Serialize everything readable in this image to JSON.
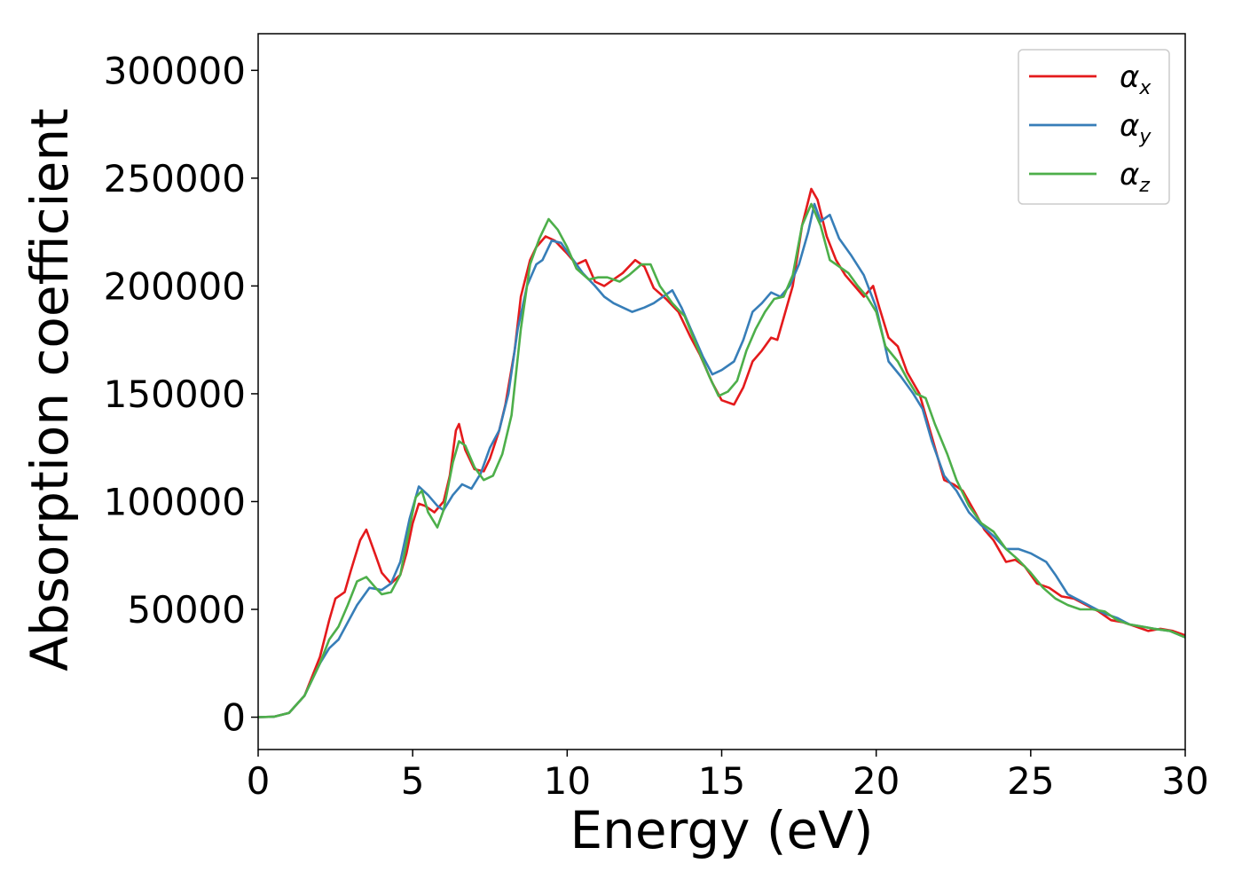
{
  "chart_data": {
    "type": "line",
    "xlabel": "Energy (eV)",
    "ylabel": "Absorption coefficient",
    "xlim": [
      0,
      30
    ],
    "ylim": [
      -15000,
      317000
    ],
    "x_ticks": [
      0,
      5,
      10,
      15,
      20,
      25,
      30
    ],
    "y_ticks": [
      0,
      50000,
      100000,
      150000,
      200000,
      250000,
      300000
    ],
    "x_tick_labels": [
      "0",
      "5",
      "10",
      "15",
      "20",
      "25",
      "30"
    ],
    "y_tick_labels": [
      "0",
      "50000",
      "100000",
      "150000",
      "200000",
      "250000",
      "300000"
    ],
    "grid": false,
    "legend_position": "top-right",
    "series": [
      {
        "name": "αx",
        "symbol": "α",
        "subscript": "x",
        "color": "#e41a1c",
        "points": [
          [
            0,
            0
          ],
          [
            0.5,
            200
          ],
          [
            1.0,
            2000
          ],
          [
            1.5,
            10000
          ],
          [
            2.0,
            28000
          ],
          [
            2.3,
            45000
          ],
          [
            2.5,
            55000
          ],
          [
            2.8,
            58000
          ],
          [
            3.0,
            68000
          ],
          [
            3.3,
            82000
          ],
          [
            3.5,
            87000
          ],
          [
            3.8,
            75000
          ],
          [
            4.0,
            67000
          ],
          [
            4.3,
            62000
          ],
          [
            4.6,
            66000
          ],
          [
            4.8,
            76000
          ],
          [
            5.0,
            90000
          ],
          [
            5.2,
            99000
          ],
          [
            5.4,
            98000
          ],
          [
            5.7,
            95000
          ],
          [
            6.0,
            100000
          ],
          [
            6.2,
            112000
          ],
          [
            6.4,
            133000
          ],
          [
            6.5,
            136000
          ],
          [
            6.7,
            124000
          ],
          [
            7.0,
            115000
          ],
          [
            7.3,
            114000
          ],
          [
            7.5,
            120000
          ],
          [
            7.8,
            133000
          ],
          [
            8.0,
            145000
          ],
          [
            8.3,
            170000
          ],
          [
            8.5,
            195000
          ],
          [
            8.8,
            212000
          ],
          [
            9.0,
            218000
          ],
          [
            9.3,
            223000
          ],
          [
            9.6,
            221000
          ],
          [
            10.0,
            215000
          ],
          [
            10.3,
            210000
          ],
          [
            10.6,
            212000
          ],
          [
            10.9,
            202000
          ],
          [
            11.2,
            200000
          ],
          [
            11.5,
            203000
          ],
          [
            11.8,
            206000
          ],
          [
            12.2,
            212000
          ],
          [
            12.5,
            209000
          ],
          [
            12.8,
            199000
          ],
          [
            13.2,
            194000
          ],
          [
            13.6,
            188000
          ],
          [
            14.0,
            176000
          ],
          [
            14.3,
            168000
          ],
          [
            14.7,
            155000
          ],
          [
            15.0,
            147000
          ],
          [
            15.4,
            145000
          ],
          [
            15.7,
            153000
          ],
          [
            16.0,
            165000
          ],
          [
            16.3,
            170000
          ],
          [
            16.6,
            176000
          ],
          [
            16.8,
            175000
          ],
          [
            17.0,
            185000
          ],
          [
            17.3,
            200000
          ],
          [
            17.6,
            228000
          ],
          [
            17.9,
            245000
          ],
          [
            18.1,
            240000
          ],
          [
            18.4,
            223000
          ],
          [
            18.7,
            212000
          ],
          [
            19.0,
            205000
          ],
          [
            19.3,
            200000
          ],
          [
            19.6,
            195000
          ],
          [
            19.9,
            200000
          ],
          [
            20.1,
            190000
          ],
          [
            20.4,
            176000
          ],
          [
            20.7,
            172000
          ],
          [
            21.0,
            160000
          ],
          [
            21.4,
            150000
          ],
          [
            21.8,
            130000
          ],
          [
            22.2,
            110000
          ],
          [
            22.5,
            108000
          ],
          [
            22.8,
            105000
          ],
          [
            23.2,
            95000
          ],
          [
            23.5,
            87000
          ],
          [
            23.8,
            82000
          ],
          [
            24.2,
            72000
          ],
          [
            24.5,
            73000
          ],
          [
            24.8,
            70000
          ],
          [
            25.2,
            62000
          ],
          [
            25.6,
            60000
          ],
          [
            26.0,
            56000
          ],
          [
            26.4,
            55000
          ],
          [
            26.8,
            52000
          ],
          [
            27.2,
            49000
          ],
          [
            27.6,
            45000
          ],
          [
            28.0,
            44000
          ],
          [
            28.4,
            42000
          ],
          [
            28.8,
            40000
          ],
          [
            29.2,
            41000
          ],
          [
            29.6,
            40000
          ],
          [
            30.0,
            38000
          ]
        ]
      },
      {
        "name": "αy",
        "symbol": "α",
        "subscript": "y",
        "color": "#377eb8",
        "points": [
          [
            0,
            0
          ],
          [
            0.5,
            200
          ],
          [
            1.0,
            2000
          ],
          [
            1.5,
            10000
          ],
          [
            2.0,
            25000
          ],
          [
            2.3,
            32000
          ],
          [
            2.6,
            36000
          ],
          [
            2.9,
            44000
          ],
          [
            3.2,
            52000
          ],
          [
            3.6,
            60000
          ],
          [
            4.0,
            59000
          ],
          [
            4.3,
            62000
          ],
          [
            4.6,
            72000
          ],
          [
            4.9,
            92000
          ],
          [
            5.2,
            107000
          ],
          [
            5.5,
            103000
          ],
          [
            5.8,
            98000
          ],
          [
            6.0,
            96000
          ],
          [
            6.3,
            103000
          ],
          [
            6.6,
            108000
          ],
          [
            6.9,
            106000
          ],
          [
            7.2,
            113000
          ],
          [
            7.5,
            125000
          ],
          [
            7.8,
            133000
          ],
          [
            8.1,
            150000
          ],
          [
            8.4,
            180000
          ],
          [
            8.7,
            200000
          ],
          [
            9.0,
            210000
          ],
          [
            9.2,
            212000
          ],
          [
            9.5,
            221000
          ],
          [
            9.8,
            220000
          ],
          [
            10.1,
            214000
          ],
          [
            10.5,
            206000
          ],
          [
            10.9,
            200000
          ],
          [
            11.2,
            195000
          ],
          [
            11.5,
            192000
          ],
          [
            11.8,
            190000
          ],
          [
            12.1,
            188000
          ],
          [
            12.5,
            190000
          ],
          [
            12.8,
            192000
          ],
          [
            13.2,
            196000
          ],
          [
            13.4,
            198000
          ],
          [
            13.7,
            190000
          ],
          [
            14.0,
            180000
          ],
          [
            14.4,
            167000
          ],
          [
            14.7,
            159000
          ],
          [
            15.0,
            161000
          ],
          [
            15.4,
            165000
          ],
          [
            15.7,
            175000
          ],
          [
            16.0,
            188000
          ],
          [
            16.3,
            192000
          ],
          [
            16.6,
            197000
          ],
          [
            16.9,
            195000
          ],
          [
            17.2,
            200000
          ],
          [
            17.5,
            210000
          ],
          [
            17.8,
            225000
          ],
          [
            18.0,
            238000
          ],
          [
            18.2,
            230000
          ],
          [
            18.5,
            233000
          ],
          [
            18.8,
            222000
          ],
          [
            19.2,
            214000
          ],
          [
            19.6,
            205000
          ],
          [
            20.0,
            190000
          ],
          [
            20.4,
            165000
          ],
          [
            20.8,
            158000
          ],
          [
            21.2,
            150000
          ],
          [
            21.5,
            143000
          ],
          [
            21.8,
            128000
          ],
          [
            22.2,
            112000
          ],
          [
            22.6,
            105000
          ],
          [
            23.0,
            95000
          ],
          [
            23.4,
            89000
          ],
          [
            23.8,
            84000
          ],
          [
            24.2,
            78000
          ],
          [
            24.6,
            78000
          ],
          [
            25.0,
            76000
          ],
          [
            25.5,
            72000
          ],
          [
            25.8,
            66000
          ],
          [
            26.2,
            57000
          ],
          [
            26.6,
            54000
          ],
          [
            27.0,
            51000
          ],
          [
            27.4,
            48000
          ],
          [
            27.8,
            46000
          ],
          [
            28.2,
            43000
          ],
          [
            28.6,
            42000
          ],
          [
            29.0,
            41000
          ],
          [
            29.5,
            40000
          ],
          [
            30.0,
            37000
          ]
        ]
      },
      {
        "name": "αz",
        "symbol": "α",
        "subscript": "z",
        "color": "#4daf4a",
        "points": [
          [
            0,
            0
          ],
          [
            0.5,
            200
          ],
          [
            1.0,
            2000
          ],
          [
            1.5,
            10000
          ],
          [
            2.0,
            25000
          ],
          [
            2.3,
            36000
          ],
          [
            2.6,
            42000
          ],
          [
            2.9,
            52000
          ],
          [
            3.2,
            63000
          ],
          [
            3.5,
            65000
          ],
          [
            3.8,
            60000
          ],
          [
            4.0,
            57000
          ],
          [
            4.3,
            58000
          ],
          [
            4.6,
            66000
          ],
          [
            4.9,
            88000
          ],
          [
            5.1,
            102000
          ],
          [
            5.3,
            105000
          ],
          [
            5.5,
            95000
          ],
          [
            5.8,
            88000
          ],
          [
            6.0,
            96000
          ],
          [
            6.3,
            118000
          ],
          [
            6.5,
            128000
          ],
          [
            6.7,
            126000
          ],
          [
            7.0,
            116000
          ],
          [
            7.3,
            110000
          ],
          [
            7.6,
            112000
          ],
          [
            7.9,
            122000
          ],
          [
            8.2,
            140000
          ],
          [
            8.5,
            180000
          ],
          [
            8.8,
            210000
          ],
          [
            9.1,
            222000
          ],
          [
            9.4,
            231000
          ],
          [
            9.7,
            226000
          ],
          [
            10.0,
            218000
          ],
          [
            10.3,
            208000
          ],
          [
            10.7,
            203000
          ],
          [
            11.0,
            204000
          ],
          [
            11.3,
            204000
          ],
          [
            11.7,
            202000
          ],
          [
            12.0,
            205000
          ],
          [
            12.4,
            210000
          ],
          [
            12.7,
            210000
          ],
          [
            13.0,
            200000
          ],
          [
            13.4,
            192000
          ],
          [
            13.8,
            186000
          ],
          [
            14.2,
            172000
          ],
          [
            14.6,
            158000
          ],
          [
            14.9,
            149000
          ],
          [
            15.2,
            151000
          ],
          [
            15.5,
            156000
          ],
          [
            15.8,
            170000
          ],
          [
            16.1,
            180000
          ],
          [
            16.4,
            188000
          ],
          [
            16.7,
            194000
          ],
          [
            17.0,
            195000
          ],
          [
            17.3,
            205000
          ],
          [
            17.6,
            228000
          ],
          [
            17.9,
            238000
          ],
          [
            18.2,
            228000
          ],
          [
            18.5,
            212000
          ],
          [
            18.8,
            209000
          ],
          [
            19.1,
            206000
          ],
          [
            19.4,
            200000
          ],
          [
            19.7,
            195000
          ],
          [
            20.0,
            188000
          ],
          [
            20.3,
            172000
          ],
          [
            20.7,
            165000
          ],
          [
            21.0,
            157000
          ],
          [
            21.3,
            150000
          ],
          [
            21.6,
            148000
          ],
          [
            21.9,
            136000
          ],
          [
            22.3,
            122000
          ],
          [
            22.6,
            110000
          ],
          [
            23.0,
            98000
          ],
          [
            23.4,
            90000
          ],
          [
            23.8,
            86000
          ],
          [
            24.2,
            78000
          ],
          [
            24.6,
            73000
          ],
          [
            25.0,
            67000
          ],
          [
            25.4,
            60000
          ],
          [
            25.8,
            55000
          ],
          [
            26.2,
            52000
          ],
          [
            26.6,
            50000
          ],
          [
            27.0,
            50000
          ],
          [
            27.4,
            49000
          ],
          [
            27.8,
            45000
          ],
          [
            28.2,
            43000
          ],
          [
            28.6,
            42000
          ],
          [
            29.0,
            41000
          ],
          [
            29.5,
            40000
          ],
          [
            30.0,
            37000
          ]
        ]
      }
    ]
  }
}
